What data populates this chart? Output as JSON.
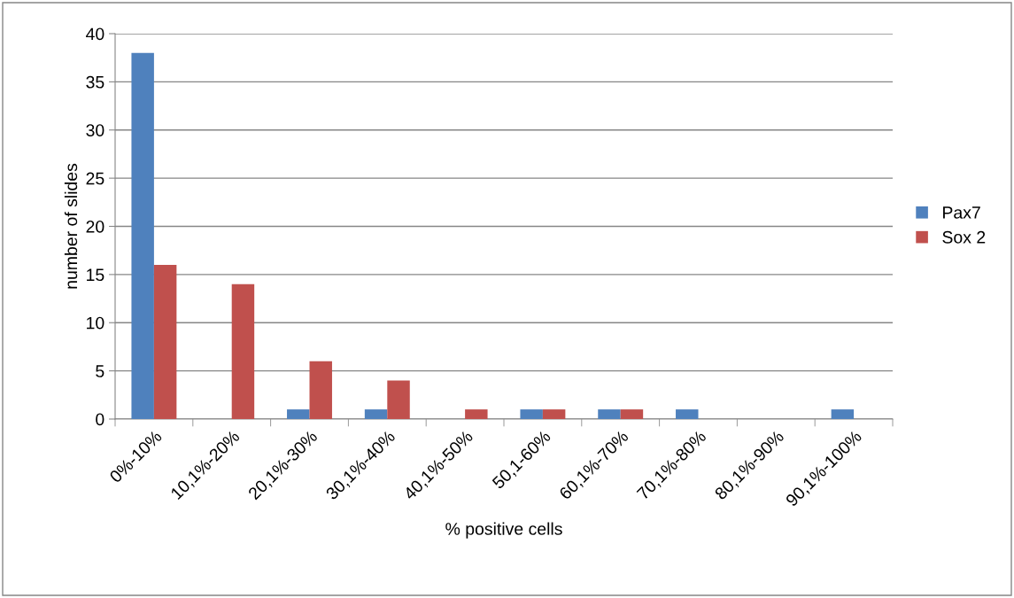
{
  "chart_data": {
    "type": "bar",
    "xlabel": "% positive cells",
    "ylabel": "number of slides",
    "categories": [
      "0%-10%",
      "10,1%-20%",
      "20,1%-30%",
      "30,1%-40%",
      "40,1%-50%",
      "50,1-60%",
      "60,1%-70%",
      "70,1%-80%",
      "80,1%-90%",
      "90,1%-100%"
    ],
    "series": [
      {
        "name": "Pax7",
        "color": "#4f81bd",
        "values": [
          38,
          0,
          1,
          1,
          0,
          1,
          1,
          1,
          0,
          1
        ]
      },
      {
        "name": "Sox 2",
        "color": "#c0504d",
        "values": [
          16,
          14,
          6,
          4,
          1,
          1,
          1,
          0,
          0,
          0
        ]
      }
    ],
    "ylim": [
      0,
      40
    ],
    "yticks": [
      0,
      5,
      10,
      15,
      20,
      25,
      30,
      35,
      40
    ],
    "grid": "y",
    "legend": "right"
  }
}
